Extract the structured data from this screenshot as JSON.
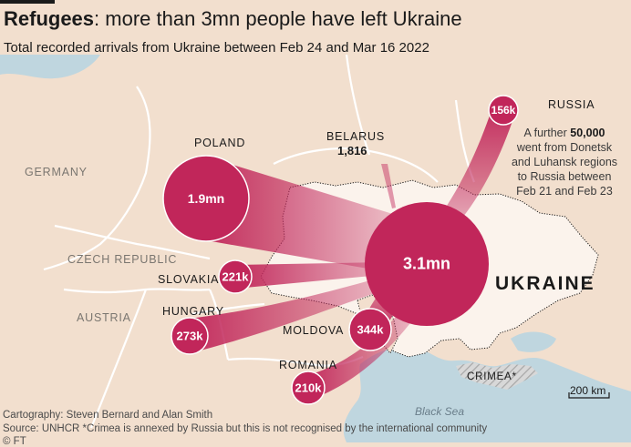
{
  "header": {
    "title_bold": "Refugees",
    "title_rest": ": more than 3mn people have left Ukraine",
    "subtitle": "Total recorded arrivals from Ukraine between Feb 24 and Mar 16 2022"
  },
  "countries": {
    "germany": "GERMANY",
    "poland": "POLAND",
    "czech": "CZECH REPUBLIC",
    "austria": "AUSTRIA",
    "slovakia": "SLOVAKIA",
    "hungary": "HUNGARY",
    "moldova": "MOLDOVA",
    "romania": "ROMANIA",
    "russia": "RUSSIA",
    "belarus": "BELARUS",
    "ukraine": "UKRAINE",
    "crimea": "CRIMEA*"
  },
  "flows": [
    {
      "country": "Poland",
      "value": 1900000,
      "label": "1.9mn"
    },
    {
      "country": "Slovakia",
      "value": 221000,
      "label": "221k"
    },
    {
      "country": "Hungary",
      "value": 273000,
      "label": "273k"
    },
    {
      "country": "Moldova",
      "value": 344000,
      "label": "344k"
    },
    {
      "country": "Romania",
      "value": 210000,
      "label": "210k"
    },
    {
      "country": "Russia",
      "value": 156000,
      "label": "156k"
    },
    {
      "country": "Belarus",
      "value": 1816,
      "label": "1,816"
    }
  ],
  "total": {
    "country": "Ukraine",
    "value": 3100000,
    "label": "3.1mn"
  },
  "russia_note": {
    "line1_pre": "A further ",
    "line1_bold": "50,000",
    "line2": "went from Donetsk",
    "line3": "and Luhansk regions",
    "line4": "to Russia between",
    "line5": "Feb 21 and Feb 23"
  },
  "sea_label": "Black Sea",
  "scale_label": "200 km",
  "footer": {
    "credit": "Cartography: Steven Bernard and Alan Smith",
    "source": "Source: UNHCR   *Crimea is annexed by Russia but this is not recognised by the international community",
    "copyright": "© FT"
  },
  "colors": {
    "bubble": "#c1265a",
    "land": "#f2dfce",
    "ukraine_land": "#fbf3ec",
    "water": "#bfd6df",
    "border": "#ffffff"
  }
}
